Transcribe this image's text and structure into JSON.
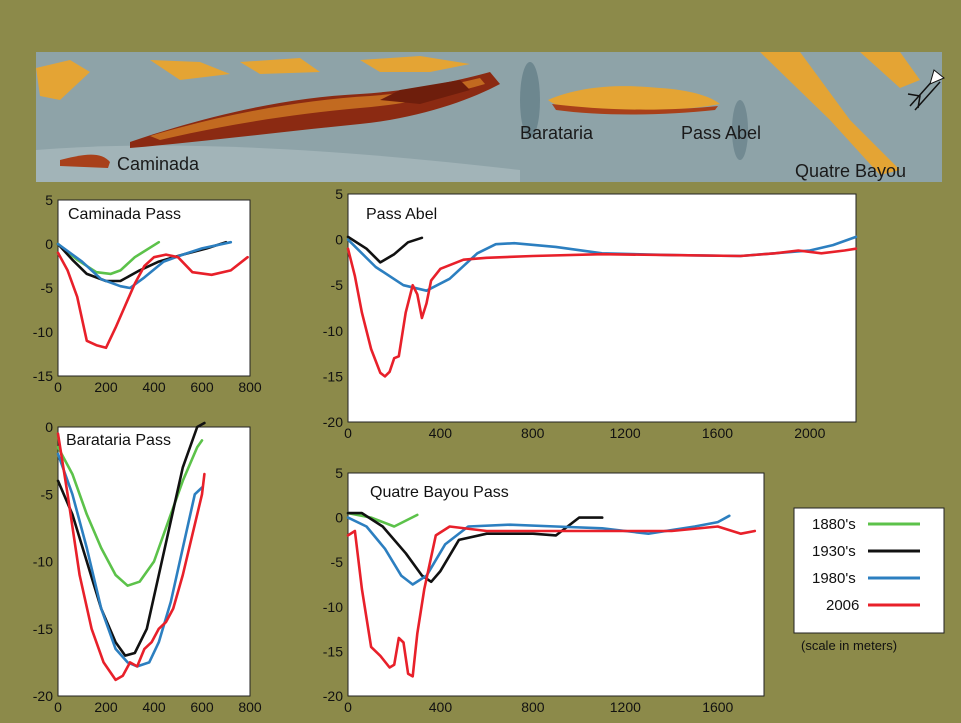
{
  "map": {
    "labels": [
      {
        "id": "caminada",
        "text": "Caminada"
      },
      {
        "id": "barataria",
        "text": "Barataria"
      },
      {
        "id": "pass-abel",
        "text": "Pass Abel"
      },
      {
        "id": "quatre-bayou",
        "text": "Quatre Bayou"
      }
    ],
    "colors": {
      "water": "#8ea3a8",
      "land_light": "#e4a434",
      "land_dark": "#8b2a12"
    },
    "north_arrow_icon": "north-arrow-icon"
  },
  "legend": {
    "entries": [
      {
        "label": "1880's",
        "color": "#5cc24a"
      },
      {
        "label": "1930's",
        "color": "#111111"
      },
      {
        "label": "1980's",
        "color": "#2c7fc0"
      },
      {
        "label": "2006",
        "color": "#e8202a"
      }
    ],
    "note": "(scale in meters)"
  },
  "chart_data": [
    {
      "id": "caminada",
      "type": "line",
      "title": "Caminada Pass",
      "xlim": [
        0,
        800
      ],
      "ylim": [
        -15,
        5
      ],
      "xticks": [
        0,
        200,
        400,
        600,
        800
      ],
      "yticks": [
        5,
        0,
        -5,
        -10,
        -15
      ],
      "series": [
        {
          "name": "1880's",
          "color": "#5cc24a",
          "x": [
            0,
            80,
            160,
            220,
            260,
            320,
            420
          ],
          "y": [
            0,
            -1.8,
            -3.2,
            -3.4,
            -3,
            -1.5,
            0.2
          ]
        },
        {
          "name": "1930's",
          "color": "#111111",
          "x": [
            0,
            60,
            120,
            200,
            260,
            340,
            420,
            520,
            620,
            700
          ],
          "y": [
            0,
            -1.8,
            -3.4,
            -4.2,
            -4.2,
            -3,
            -2,
            -1.2,
            -0.5,
            0.2
          ]
        },
        {
          "name": "1980's",
          "color": "#2c7fc0",
          "x": [
            0,
            100,
            180,
            260,
            300,
            360,
            440,
            520,
            600,
            720
          ],
          "y": [
            0,
            -2,
            -4,
            -4.8,
            -5,
            -3.8,
            -2,
            -1.2,
            -0.5,
            0.2
          ]
        },
        {
          "name": "2006",
          "color": "#e8202a",
          "x": [
            0,
            40,
            80,
            120,
            160,
            200,
            240,
            280,
            320,
            360,
            400,
            450,
            500,
            560,
            640,
            720,
            790
          ],
          "y": [
            -1,
            -3,
            -6,
            -11,
            -11.5,
            -11.8,
            -9.5,
            -7,
            -4.5,
            -2.5,
            -1.5,
            -1.2,
            -1.5,
            -3.2,
            -3.5,
            -3,
            -1.5
          ]
        }
      ]
    },
    {
      "id": "pass-abel",
      "type": "line",
      "title": "Pass Abel",
      "xlim": [
        0,
        2200
      ],
      "ylim": [
        -20,
        5
      ],
      "xticks": [
        0,
        400,
        800,
        1200,
        1600,
        2000
      ],
      "yticks": [
        5,
        0,
        -5,
        -10,
        -15,
        -20
      ],
      "series": [
        {
          "name": "1930's",
          "color": "#111111",
          "x": [
            0,
            80,
            140,
            200,
            260,
            320
          ],
          "y": [
            0.3,
            -1,
            -2.5,
            -1.6,
            -0.3,
            0.2
          ]
        },
        {
          "name": "1980's",
          "color": "#2c7fc0",
          "x": [
            0,
            120,
            240,
            340,
            440,
            560,
            640,
            720,
            900,
            1100,
            1400,
            1700,
            2000,
            2100,
            2200
          ],
          "y": [
            0,
            -3,
            -5,
            -5.6,
            -4.3,
            -1.5,
            -0.5,
            -0.4,
            -0.8,
            -1.5,
            -1.7,
            -1.8,
            -1.2,
            -0.6,
            0.3
          ]
        },
        {
          "name": "2006",
          "color": "#e8202a",
          "x": [
            0,
            30,
            60,
            100,
            140,
            160,
            180,
            200,
            220,
            250,
            280,
            300,
            320,
            340,
            360,
            400,
            500,
            600,
            800,
            1100,
            1400,
            1700,
            1850,
            1950,
            2050,
            2150,
            2200
          ],
          "y": [
            -1,
            -4,
            -8,
            -12,
            -14.6,
            -15,
            -14.5,
            -13,
            -12.8,
            -8,
            -5,
            -6,
            -8.6,
            -7,
            -4.5,
            -3.2,
            -2.2,
            -2,
            -1.8,
            -1.6,
            -1.7,
            -1.8,
            -1.5,
            -1.2,
            -1.5,
            -1.2,
            -1
          ]
        }
      ]
    },
    {
      "id": "barataria",
      "type": "line",
      "title": "Barataria Pass",
      "xlim": [
        0,
        800
      ],
      "ylim": [
        -20,
        0
      ],
      "xticks": [
        0,
        200,
        400,
        600,
        800
      ],
      "yticks": [
        0,
        -5,
        -10,
        -15,
        -20
      ],
      "series": [
        {
          "name": "1880's",
          "color": "#5cc24a",
          "x": [
            0,
            60,
            120,
            180,
            240,
            290,
            340,
            400,
            460,
            520,
            580,
            600
          ],
          "y": [
            -1.5,
            -3.5,
            -6.5,
            -9,
            -11,
            -11.8,
            -11.5,
            -10,
            -7,
            -4,
            -1.5,
            -1
          ]
        },
        {
          "name": "1930's",
          "color": "#111111",
          "x": [
            0,
            60,
            120,
            180,
            240,
            280,
            320,
            370,
            420,
            470,
            520,
            580,
            610
          ],
          "y": [
            -4,
            -6.5,
            -10,
            -13.5,
            -16,
            -17,
            -16.8,
            -15,
            -11,
            -7,
            -3,
            0,
            0.3
          ]
        },
        {
          "name": "1980's",
          "color": "#2c7fc0",
          "x": [
            0,
            60,
            120,
            180,
            240,
            290,
            330,
            380,
            420,
            470,
            520,
            570,
            600
          ],
          "y": [
            -2,
            -5,
            -9,
            -13.5,
            -16.5,
            -17.5,
            -17.8,
            -17.5,
            -16,
            -13,
            -9,
            -5,
            -4.5
          ]
        },
        {
          "name": "2006",
          "color": "#e8202a",
          "x": [
            0,
            40,
            90,
            140,
            190,
            240,
            270,
            300,
            330,
            360,
            390,
            420,
            450,
            480,
            520,
            560,
            600,
            610
          ],
          "y": [
            -0.5,
            -5,
            -11,
            -15,
            -17.5,
            -18.8,
            -18.5,
            -17.5,
            -17.8,
            -16.5,
            -16,
            -15,
            -14.5,
            -13.5,
            -11,
            -8,
            -5,
            -3.5
          ]
        }
      ]
    },
    {
      "id": "quatre-bayou",
      "type": "line",
      "title": "Quatre Bayou Pass",
      "xlim": [
        0,
        1800
      ],
      "ylim": [
        -20,
        5
      ],
      "xticks": [
        0,
        400,
        800,
        1200,
        1600
      ],
      "yticks": [
        5,
        0,
        -5,
        -10,
        -15,
        -20
      ],
      "series": [
        {
          "name": "1880's",
          "color": "#5cc24a",
          "x": [
            0,
            100,
            200,
            300
          ],
          "y": [
            0.5,
            0,
            -1,
            0.3
          ]
        },
        {
          "name": "1930's",
          "color": "#111111",
          "x": [
            0,
            60,
            150,
            250,
            320,
            360,
            400,
            480,
            600,
            800,
            900,
            1000,
            1100
          ],
          "y": [
            0.5,
            0.5,
            -1,
            -4,
            -6.5,
            -7.2,
            -6,
            -2.5,
            -1.8,
            -1.8,
            -2,
            0,
            0
          ]
        },
        {
          "name": "1980's",
          "color": "#2c7fc0",
          "x": [
            0,
            80,
            160,
            230,
            280,
            340,
            420,
            520,
            700,
            900,
            1100,
            1300,
            1500,
            1600,
            1650
          ],
          "y": [
            0,
            -1,
            -3.5,
            -6.5,
            -7.5,
            -6.5,
            -3,
            -1,
            -0.8,
            -1,
            -1.2,
            -1.8,
            -1,
            -0.5,
            0.2
          ]
        },
        {
          "name": "2006",
          "color": "#e8202a",
          "x": [
            0,
            30,
            60,
            100,
            140,
            180,
            200,
            220,
            240,
            260,
            280,
            300,
            330,
            380,
            440,
            600,
            800,
            1000,
            1200,
            1400,
            1600,
            1700,
            1760
          ],
          "y": [
            -2,
            -1.5,
            -8,
            -14.5,
            -15.5,
            -16.8,
            -16.5,
            -13.5,
            -14,
            -17.5,
            -17.8,
            -13,
            -8,
            -2,
            -1,
            -1.5,
            -1.5,
            -1.5,
            -1.5,
            -1.5,
            -1,
            -1.8,
            -1.5
          ]
        }
      ]
    }
  ]
}
